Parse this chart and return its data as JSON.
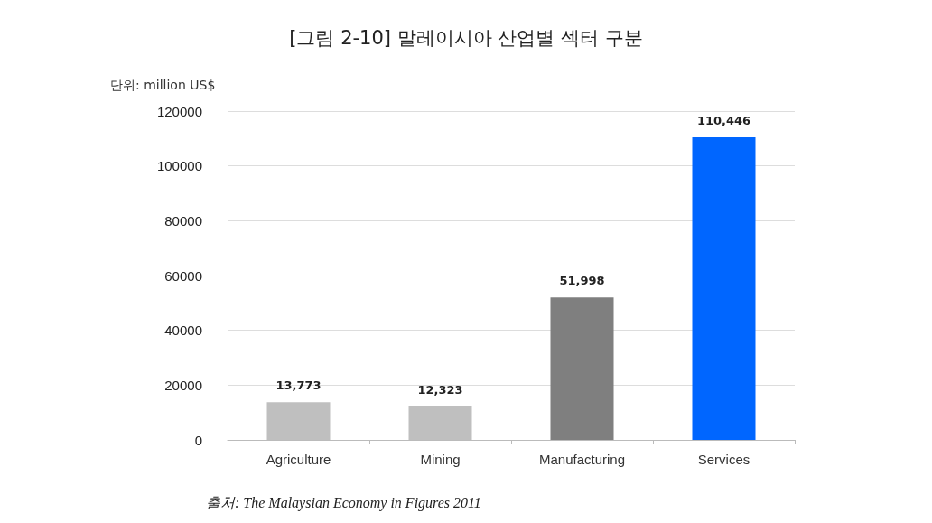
{
  "chart_data": {
    "type": "bar",
    "title": "[그림 2-10] 말레이시아 산업별 섹터 구분",
    "ylabel": "단위: million US$",
    "categories": [
      "Agriculture",
      "Mining",
      "Manufacturing",
      "Services"
    ],
    "values": [
      13773,
      12323,
      51998,
      110446
    ],
    "colors": [
      "#bfbfbf",
      "#bfbfbf",
      "#7f7f7f",
      "#0066ff"
    ],
    "value_labels": [
      "13,773",
      "12,323",
      "51,998",
      "110,446"
    ],
    "ylim": [
      0,
      120000
    ],
    "yticks": [
      0,
      20000,
      40000,
      60000,
      80000,
      100000,
      120000
    ],
    "grid": "y",
    "annotations": [
      "출처: The Malaysian Economy in Figures 2011"
    ]
  }
}
